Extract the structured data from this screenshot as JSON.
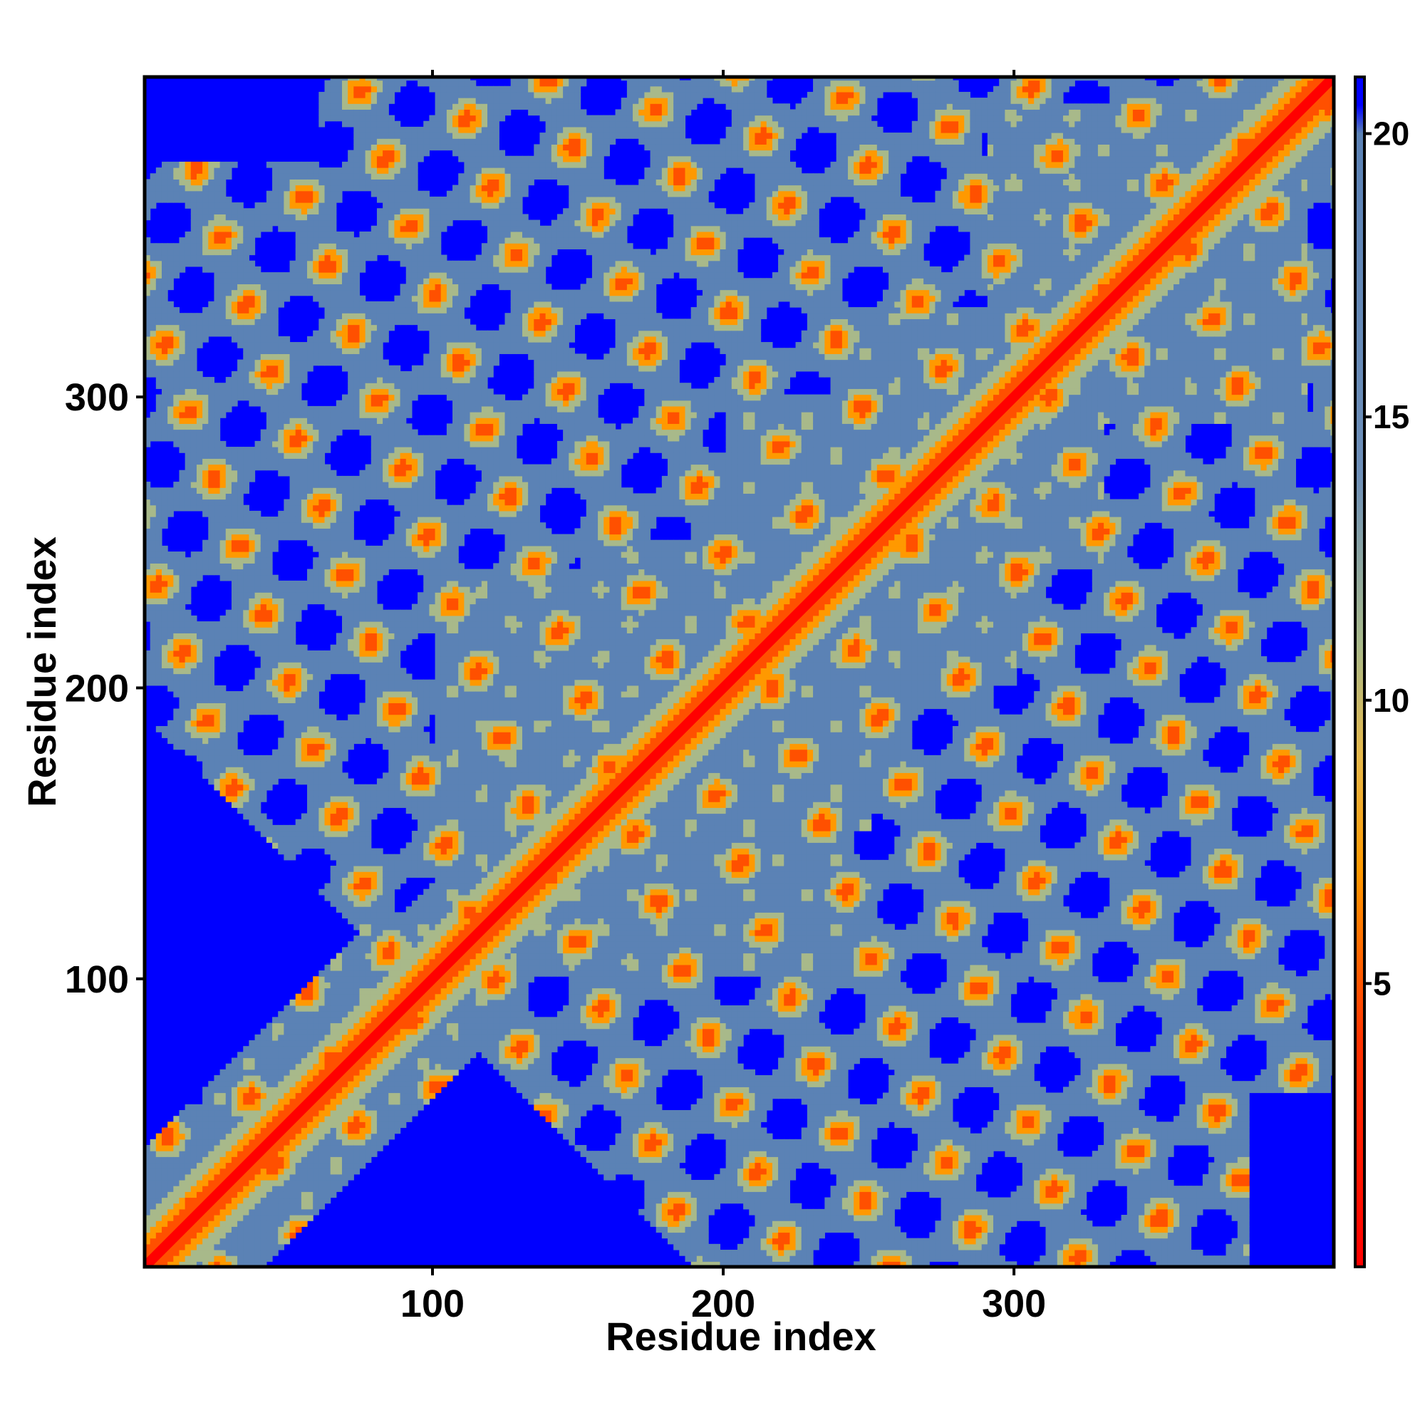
{
  "chart_data": {
    "type": "heatmap",
    "title": "",
    "xlabel": "Residue index",
    "ylabel": "Residue index",
    "xlim": [
      1,
      410
    ],
    "ylim": [
      1,
      410
    ],
    "x_ticks": [
      100,
      200,
      300
    ],
    "y_ticks": [
      100,
      200,
      300
    ],
    "colorbar": {
      "range": [
        0,
        21
      ],
      "ticks": [
        5,
        10,
        15,
        20
      ],
      "stops": [
        {
          "value": 0,
          "color": "#ff0000"
        },
        {
          "value": 4,
          "color": "#ff3300"
        },
        {
          "value": 7,
          "color": "#ff9900"
        },
        {
          "value": 9,
          "color": "#e6b84a"
        },
        {
          "value": 11,
          "color": "#a8b98a"
        },
        {
          "value": 14,
          "color": "#6d8fb8"
        },
        {
          "value": 20,
          "color": "#5b82b5"
        },
        {
          "value": 20.5,
          "color": "#0000ff"
        }
      ]
    },
    "background_color": "#0000ff",
    "diagonal_color": "#ff0000",
    "grid": false
  }
}
